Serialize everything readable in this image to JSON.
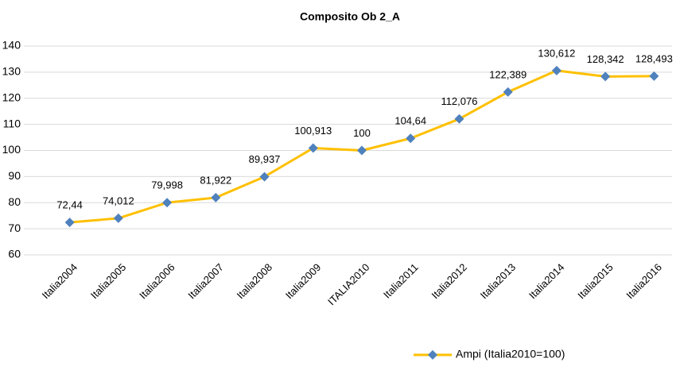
{
  "chart_data": {
    "type": "line",
    "title": "Composito Ob 2_A",
    "categories": [
      "Italia2004",
      "Italia2005",
      "Italia2006",
      "Italia2007",
      "Italia2008",
      "Italia2009",
      "ITALIA2010",
      "Italia2011",
      "Italia2012",
      "Italia2013",
      "Italia2014",
      "Italia2015",
      "Italia2016"
    ],
    "series": [
      {
        "name": "Ampi (Italia2010=100)",
        "color": "#FFC000",
        "marker_color": "#4F81BD",
        "values": [
          72.44,
          74.012,
          79.998,
          81.922,
          89.937,
          100.913,
          100,
          104.64,
          112.076,
          122.389,
          130.612,
          128.342,
          128.493
        ],
        "value_labels": [
          "72,44",
          "74,012",
          "79,998",
          "81,922",
          "89,937",
          "100,913",
          "100",
          "104,64",
          "112,076",
          "122,389",
          "130,612",
          "128,342",
          "128,493"
        ]
      }
    ],
    "ylim": [
      60,
      140
    ],
    "yticks": [
      60,
      70,
      80,
      90,
      100,
      110,
      120,
      130,
      140
    ],
    "grid": true,
    "legend": "bottom"
  }
}
